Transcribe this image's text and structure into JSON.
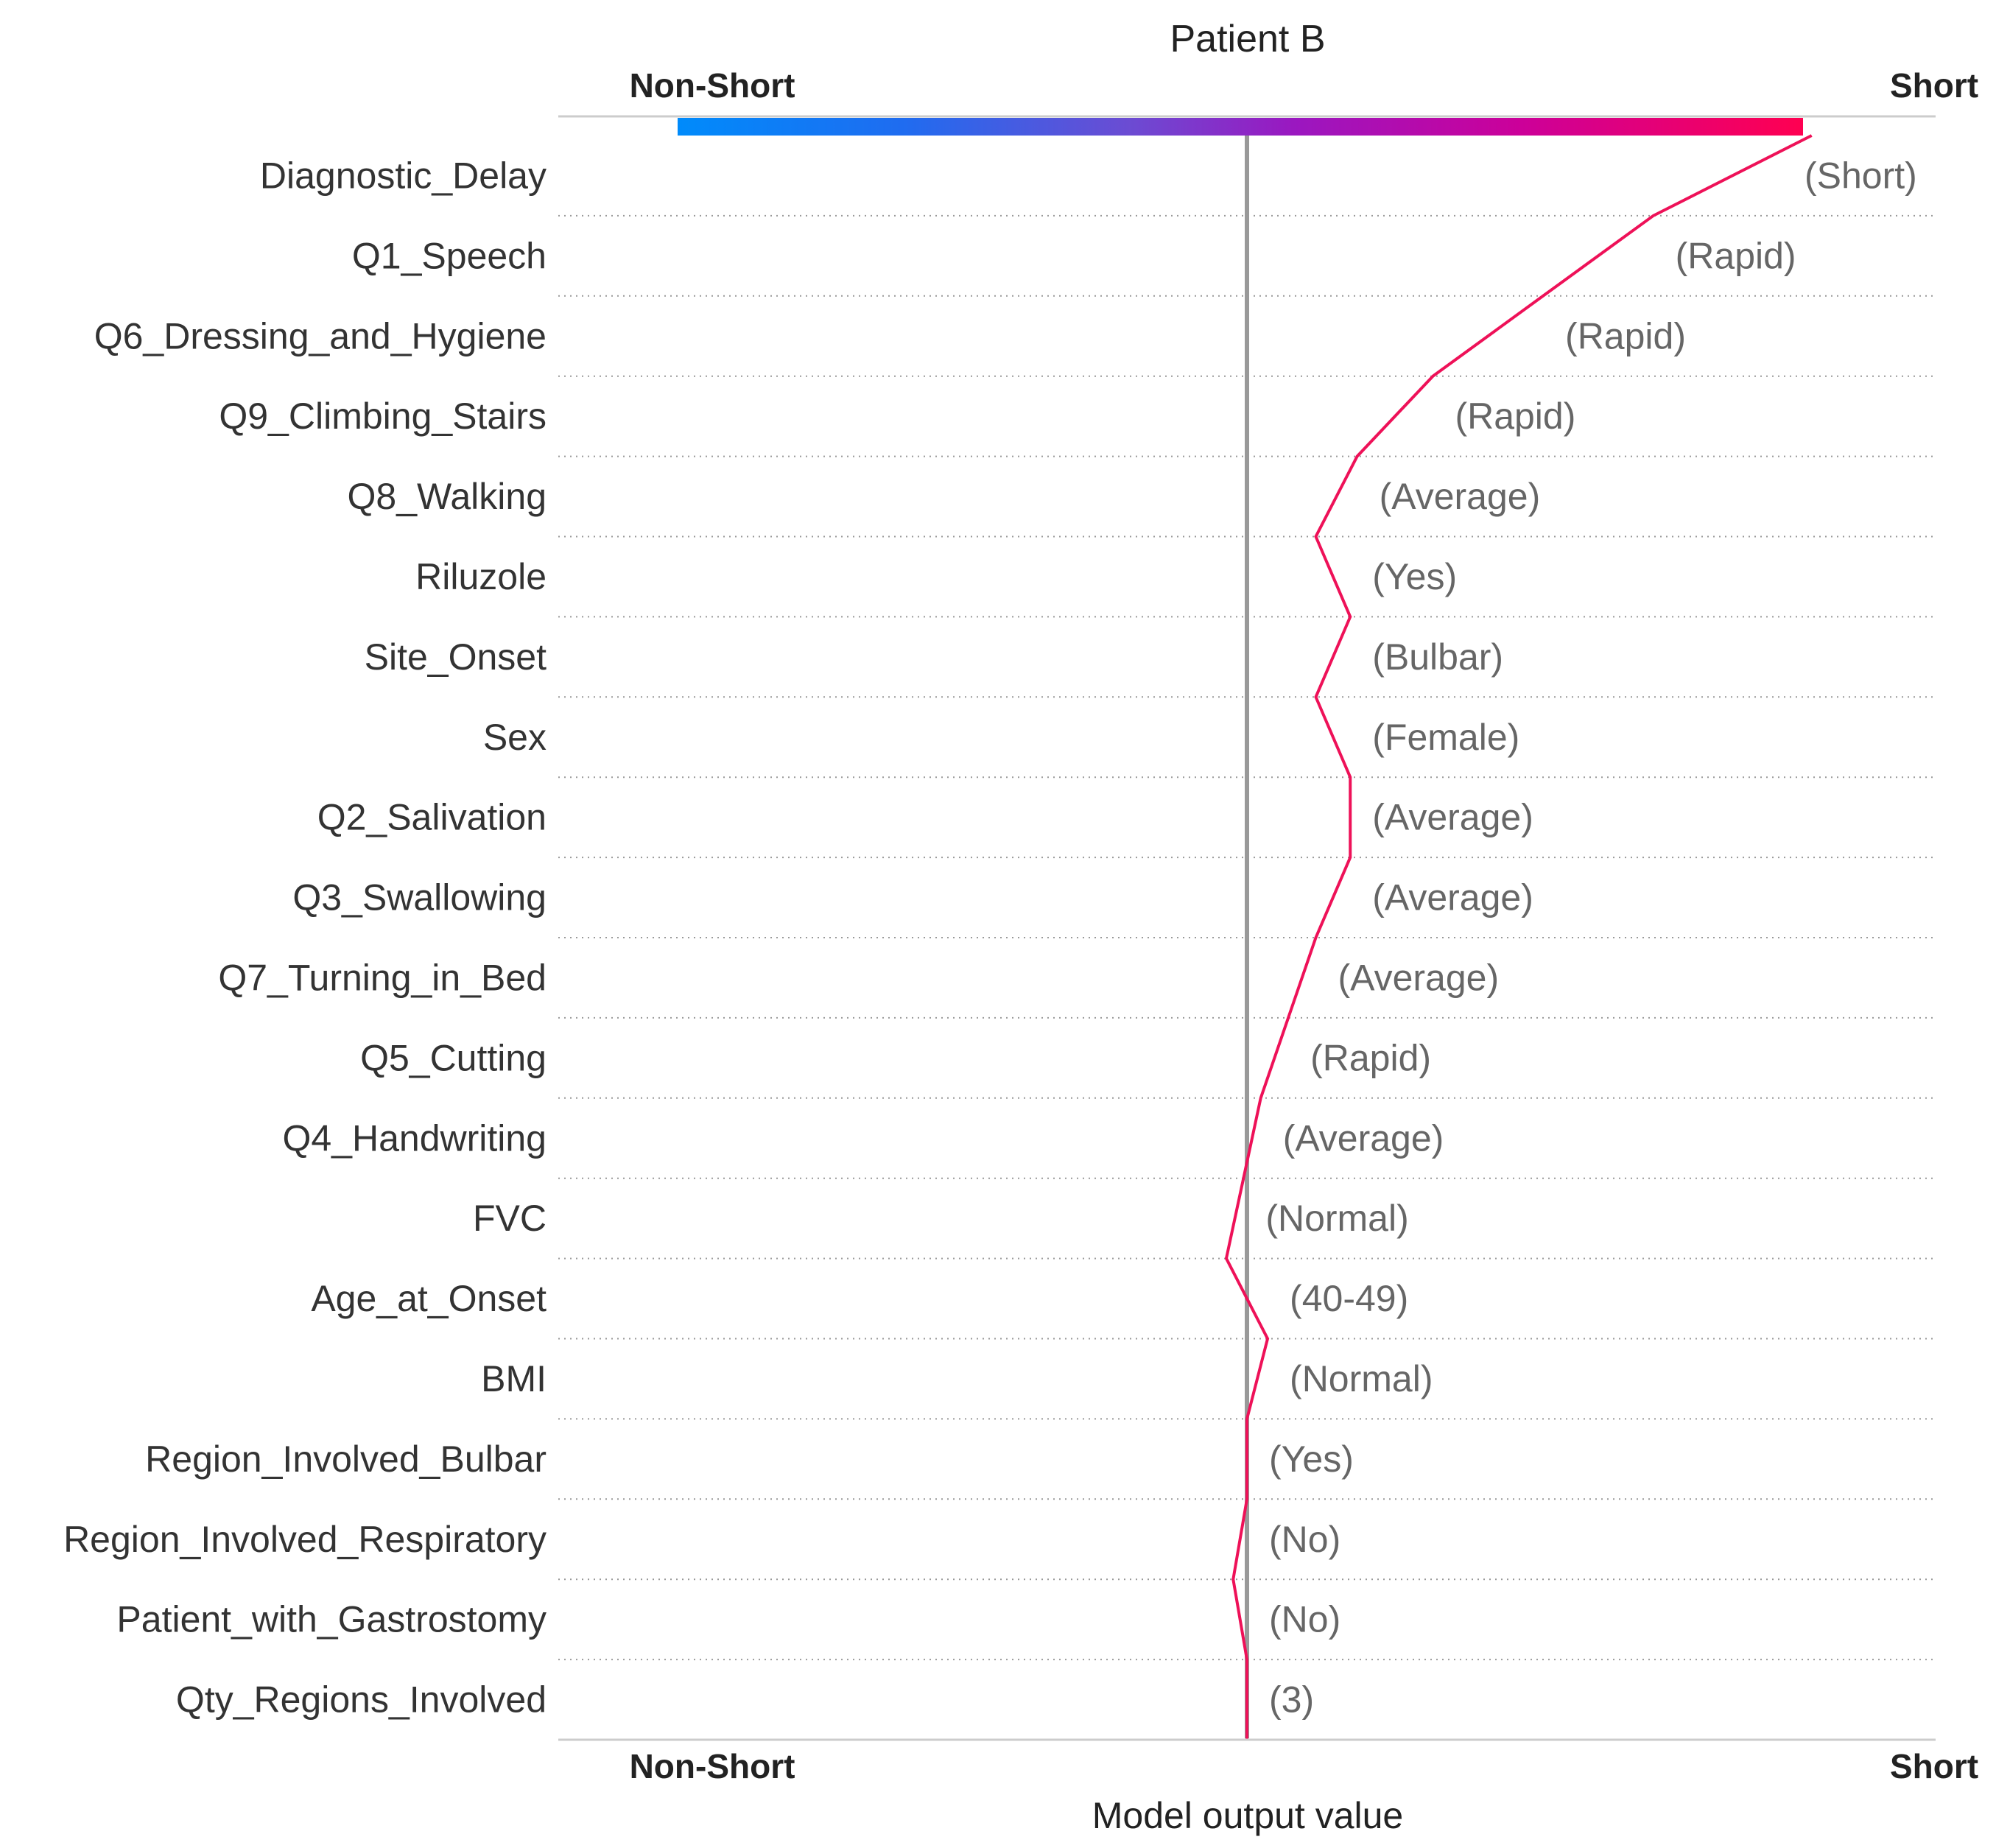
{
  "chart_data": {
    "type": "line",
    "title": "Patient B",
    "xlabel": "Model output value",
    "x_axis_end_labels": [
      "Non-Short",
      "Short"
    ],
    "colors": {
      "low": "#008bfb",
      "mid": "#9b17c0",
      "high": "#ff0051",
      "line": "#ee1158",
      "base": "#999999"
    },
    "features": [
      "Diagnostic_Delay",
      "Q1_Speech",
      "Q6_Dressing_and_Hygiene",
      "Q9_Climbing_Stairs",
      "Q8_Walking",
      "Riluzole",
      "Site_Onset",
      "Sex",
      "Q2_Salivation",
      "Q3_Swallowing",
      "Q7_Turning_in_Bed",
      "Q5_Cutting",
      "Q4_Handwriting",
      "FVC",
      "Age_at_Onset",
      "BMI",
      "Region_Involved_Bulbar",
      "Region_Involved_Respiratory",
      "Patient_with_Gastrostomy",
      "Qty_Regions_Involved"
    ],
    "feature_values": [
      "(Short)",
      "(Rapid)",
      "(Rapid)",
      "(Rapid)",
      "(Average)",
      "(Yes)",
      "(Bulbar)",
      "(Female)",
      "(Average)",
      "(Average)",
      "(Average)",
      "(Rapid)",
      "(Average)",
      "(Normal)",
      "(40-49)",
      "(Normal)",
      "(Yes)",
      "(No)",
      "(No)",
      "(3)"
    ],
    "xlim": [
      -1.0,
      1.0
    ],
    "base_value": 0.0,
    "path_x": [
      0.0,
      0.0,
      -0.02,
      0.0,
      0.0,
      0.03,
      -0.03,
      -0.005,
      0.02,
      0.06,
      0.1,
      0.15,
      0.15,
      0.1,
      0.15,
      0.1,
      0.16,
      0.27,
      0.43,
      0.59,
      0.82
    ]
  }
}
